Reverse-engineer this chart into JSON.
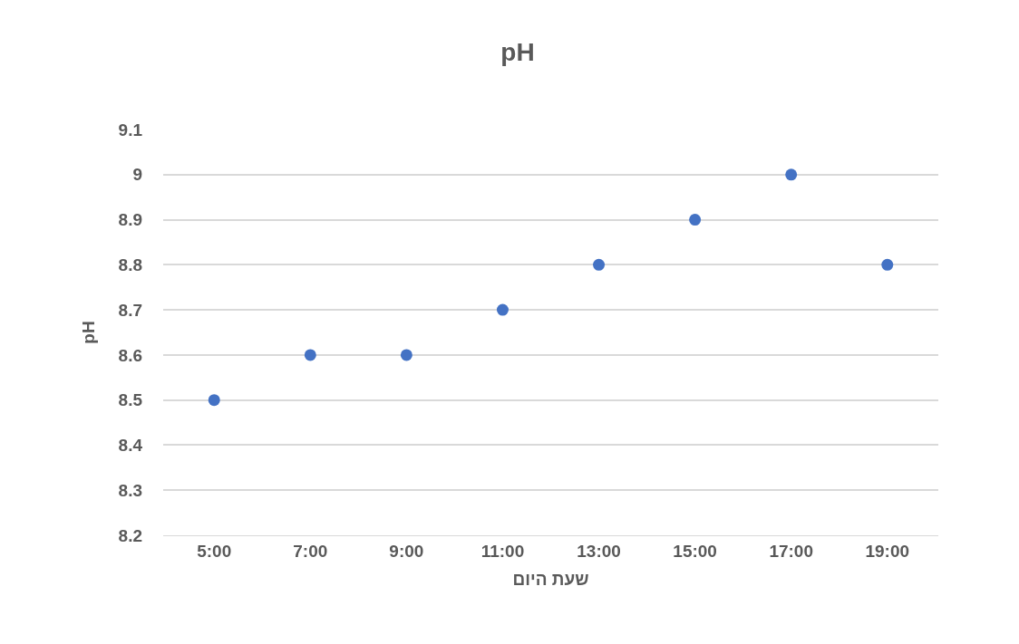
{
  "chart_data": {
    "type": "scatter",
    "title": "pH",
    "xlabel": "שעת היום",
    "ylabel": "pH",
    "categories": [
      "5:00",
      "7:00",
      "9:00",
      "11:00",
      "13:00",
      "15:00",
      "17:00",
      "19:00"
    ],
    "values": [
      8.5,
      8.6,
      8.6,
      8.7,
      8.8,
      8.9,
      9.0,
      8.8
    ],
    "color": "#4472c4",
    "marker": "circle",
    "ylim": [
      8.2,
      9.1
    ],
    "yticks": [
      8.2,
      8.3,
      8.4,
      8.5,
      8.6,
      8.7,
      8.8,
      8.9,
      9,
      9.1
    ],
    "grid": "y",
    "legend": false
  }
}
